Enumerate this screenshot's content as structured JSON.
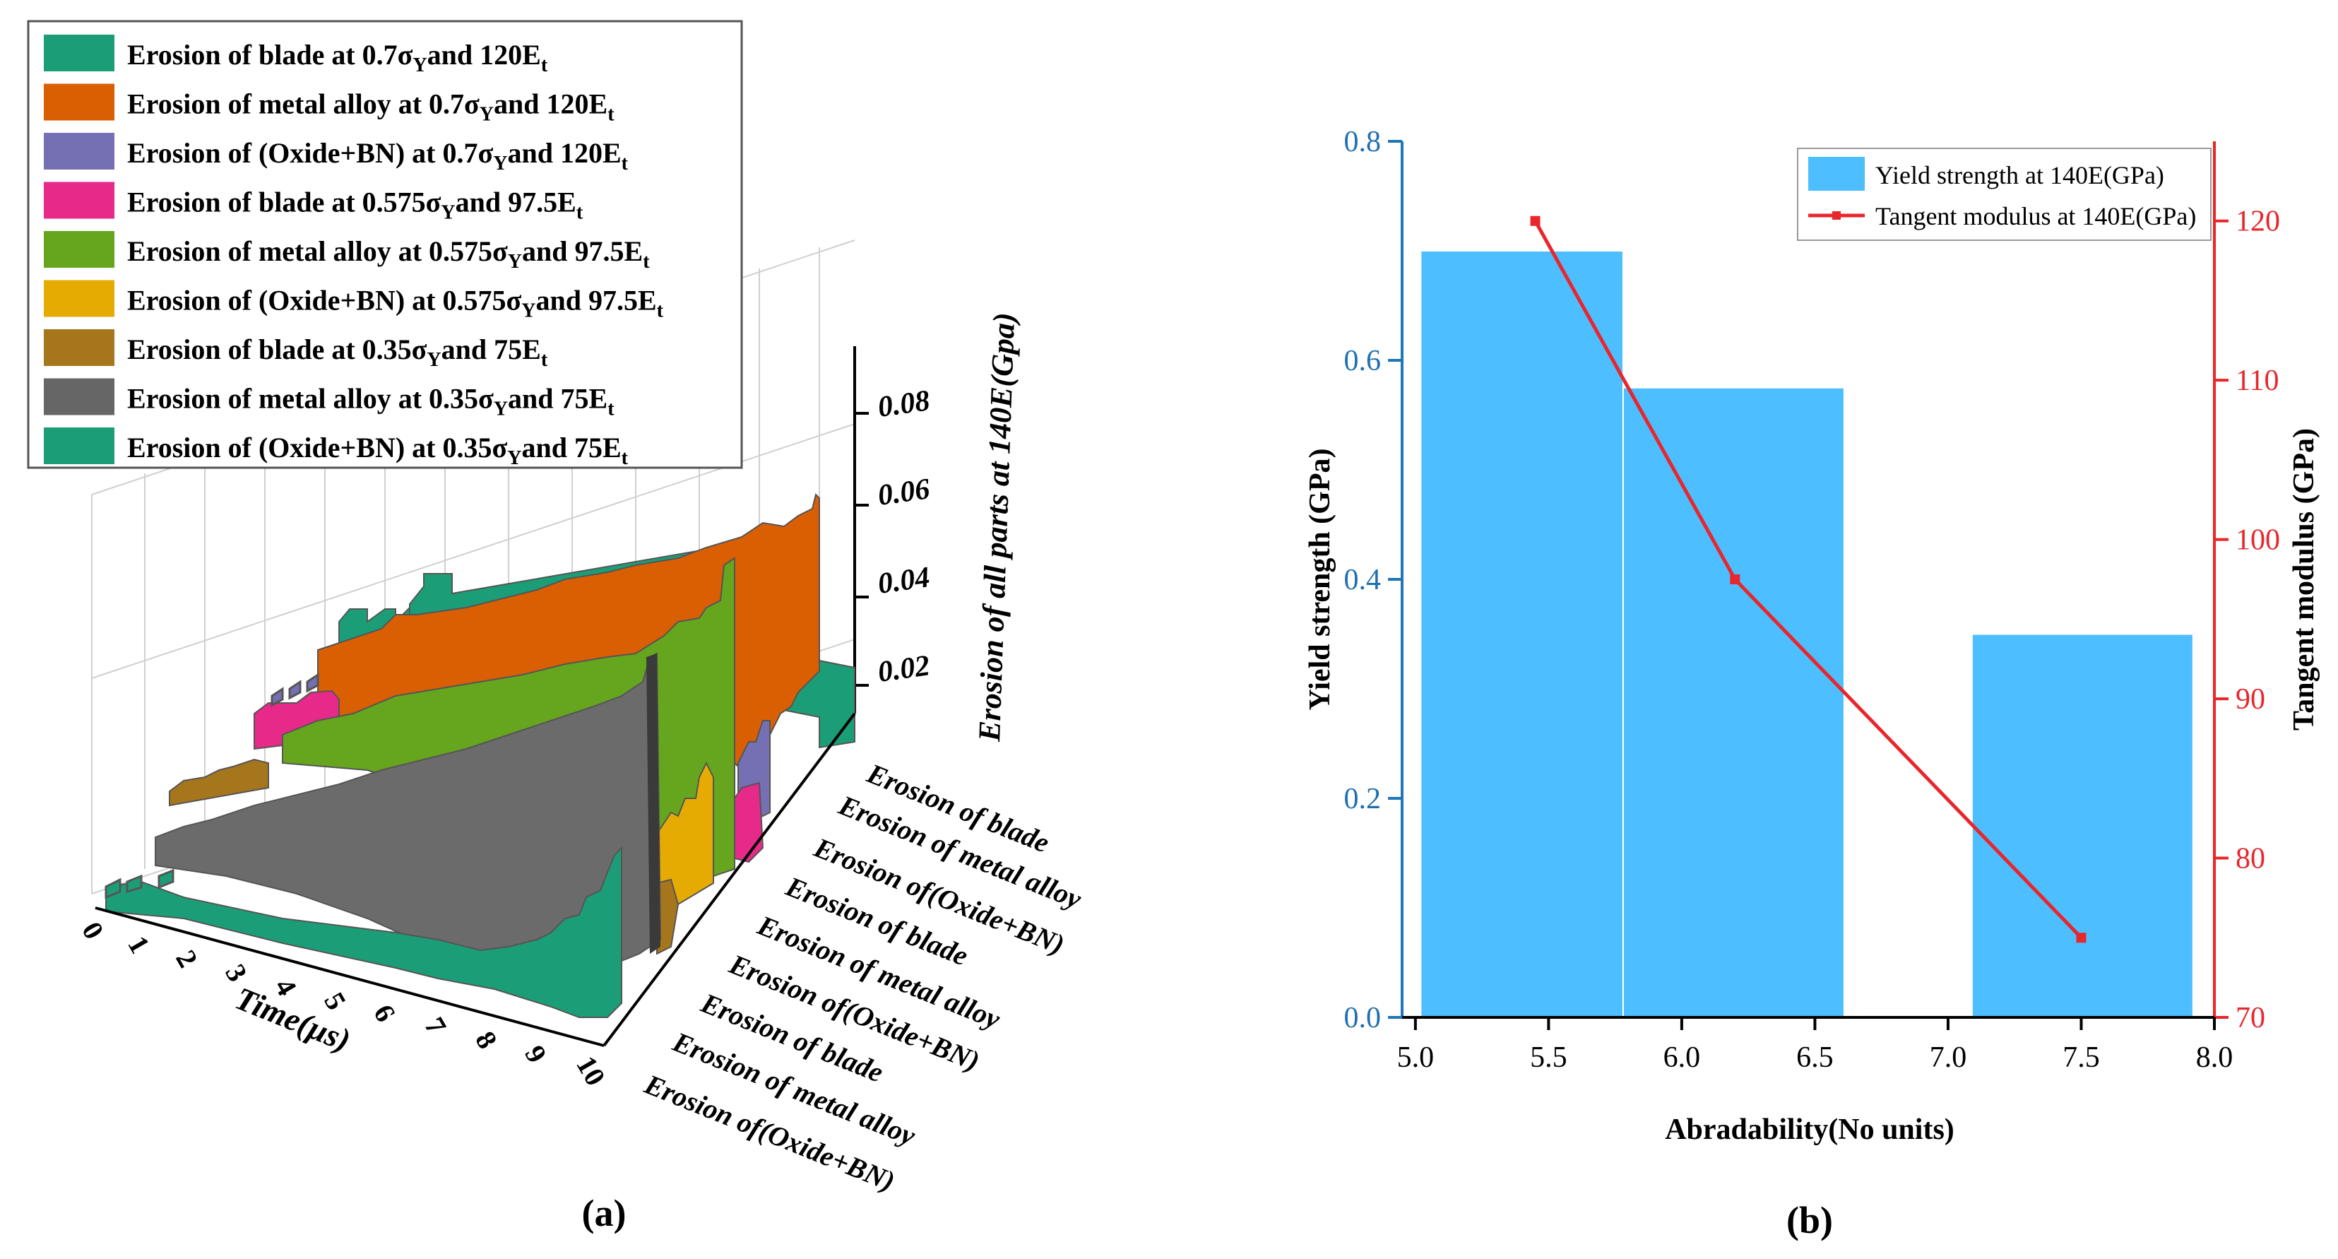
{
  "panel_a": {
    "label": "(a)",
    "legend": [
      {
        "subject": "Erosion of blade at 0.7σ",
        "mid": "and 120E",
        "color": "#1b9e77"
      },
      {
        "subject": "Erosion of metal alloy at 0.7σ",
        "mid": "and 120E",
        "color": "#d95f02"
      },
      {
        "subject": "Erosion of (Oxide+BN) at 0.7σ",
        "mid": "and 120E",
        "color": "#7570b3"
      },
      {
        "subject": "Erosion of blade at 0.575σ",
        "mid": "and 97.5E",
        "color": "#e7298a"
      },
      {
        "subject": "Erosion of metal alloy at 0.575σ",
        "mid": "and 97.5E",
        "color": "#66a61e"
      },
      {
        "subject": "Erosion of (Oxide+BN) at 0.575σ",
        "mid": "and 97.5E",
        "color": "#e6ab02"
      },
      {
        "subject": "Erosion of blade at 0.35σ",
        "mid": "and 75E",
        "color": "#a6761d"
      },
      {
        "subject": "Erosion of metal alloy at 0.35σ",
        "mid": "and 75E",
        "color": "#666666"
      },
      {
        "subject": "Erosion of (Oxide+BN) at 0.35σ",
        "mid": "and 75E",
        "color": "#1b9e77"
      }
    ],
    "legend_sub1": "Y",
    "legend_sub2": "t",
    "z_label": "Erosion of all parts at 140E(Gpa)",
    "z_ticks": [
      "0.02",
      "0.04",
      "0.06",
      "0.08"
    ],
    "x_label": "Time(µs)",
    "x_ticks": [
      "0",
      "1",
      "2",
      "3",
      "4",
      "5",
      "6",
      "7",
      "8",
      "9",
      "10"
    ],
    "y_categories": [
      "Erosion of blade",
      "Erosion of metal alloy",
      "Erosion of(Oxide+BN)",
      "Erosion of blade",
      "Erosion of metal alloy",
      "Erosion of(Oxide+BN)",
      "Erosion of blade",
      "Erosion of metal alloy",
      "Erosion of(Oxide+BN)"
    ]
  },
  "chart_data": {
    "type": "bar",
    "title": "",
    "label": "(b)",
    "xlabel": "Abradability(No units)",
    "ylabel": "Yield strength (GPa)",
    "y2label": "Tangent modulus (GPa)",
    "xlim": [
      4.95,
      8.0
    ],
    "ylim": [
      0.0,
      0.8
    ],
    "y2lim": [
      70,
      125
    ],
    "x_ticks": [
      "5.0",
      "5.5",
      "6.0",
      "6.5",
      "7.0",
      "7.5",
      "8.0"
    ],
    "y_ticks": [
      "0.0",
      "0.2",
      "0.4",
      "0.6",
      "0.8"
    ],
    "y2_ticks": [
      "70",
      "80",
      "90",
      "100",
      "110",
      "120"
    ],
    "bars": {
      "name": "Yield strength at 140E(GPa)",
      "color": "#4dbeff",
      "items": [
        {
          "x_start": 5.02,
          "x_end": 5.78,
          "value": 0.7
        },
        {
          "x_start": 5.78,
          "x_end": 6.61,
          "value": 0.575
        },
        {
          "x_start": 7.09,
          "x_end": 7.92,
          "value": 0.35
        }
      ]
    },
    "line": {
      "name": "Tangent modulus at 140E(GPa)",
      "color": "#e8262b",
      "x": [
        5.45,
        6.2,
        7.5
      ],
      "y": [
        120,
        97.5,
        75
      ]
    },
    "legend_position": "top-right"
  }
}
